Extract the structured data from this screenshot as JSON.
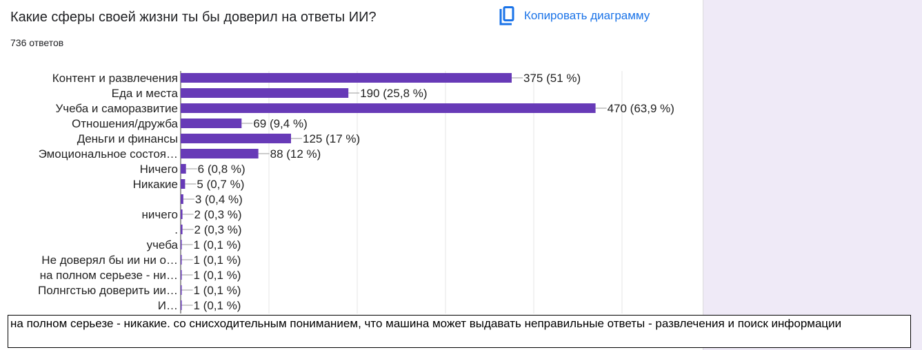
{
  "header": {
    "title": "Какие сферы своей жизни ты бы доверил на ответы ИИ?",
    "responses": "736 ответов",
    "copy_label": "Копировать диаграмму",
    "copy_icon": "copy-icon",
    "link_color": "#1a73e8"
  },
  "chart_data": {
    "type": "bar",
    "orientation": "horizontal",
    "bar_color": "#673ab7",
    "categories": [
      "Контент и развлечения",
      "Еда и места",
      "Учеба и саморазвитие",
      "Отношения/дружба",
      "Деньги и финансы",
      "Эмоциональное состоя…",
      "Ничего",
      "Никакие",
      "",
      "ничего",
      ".",
      "учеба",
      "Не доверял бы ии ни о…",
      "на полном серьезе - ни…",
      "Полнгстью доверить ии…",
      "И…"
    ],
    "values": [
      375,
      190,
      470,
      69,
      125,
      88,
      6,
      5,
      3,
      2,
      2,
      1,
      1,
      1,
      1,
      1
    ],
    "data_labels": [
      "375 (51 %)",
      "190 (25,8 %)",
      "470 (63,9 %)",
      "69 (9,4 %)",
      "125 (17 %)",
      "88 (12 %)",
      "6 (0,8 %)",
      "5 (0,7 %)",
      "3 (0,4 %)",
      "2 (0,3 %)",
      "2 (0,3 %)",
      "1 (0,1 %)",
      "1 (0,1 %)",
      "1 (0,1 %)",
      "1 (0,1 %)",
      "1 (0,1 %)"
    ],
    "xlim": [
      0,
      500
    ],
    "grid": true
  },
  "tooltip": {
    "text": "на полном серьезе - никакие. со снисходительным пониманием, что машина может выдавать неправильные ответы - развлечения и поиск информации"
  }
}
